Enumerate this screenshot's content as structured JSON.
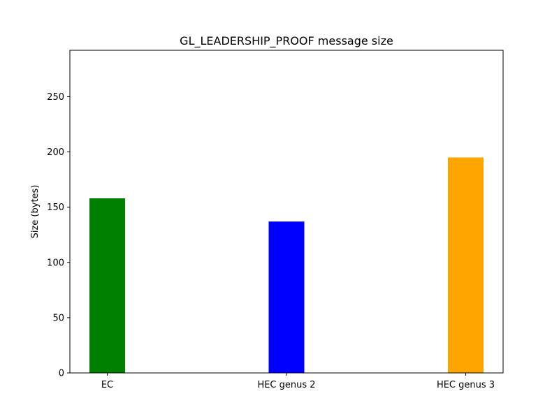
{
  "chart_data": {
    "type": "bar",
    "title": "GL_LEADERSHIP_PROOF message size",
    "xlabel": "",
    "ylabel": "Size (bytes)",
    "categories": [
      "EC",
      "HEC genus 2",
      "HEC genus 3"
    ],
    "values": [
      158,
      137,
      195
    ],
    "colors": [
      "#008000",
      "#0000ff",
      "#ffa500"
    ],
    "ylim": [
      0,
      292
    ],
    "yticks": [
      0,
      50,
      100,
      150,
      200,
      250
    ],
    "grid": false,
    "legend": "none"
  }
}
